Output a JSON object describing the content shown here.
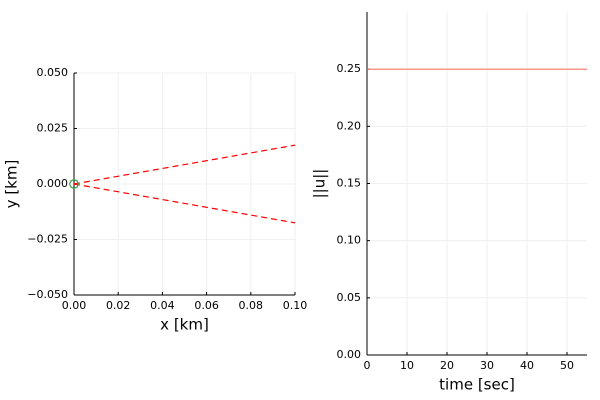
{
  "chart_data": [
    {
      "type": "line",
      "xlabel": "x [km]",
      "ylabel": "y [km]",
      "xlim": [
        0,
        0.1
      ],
      "ylim": [
        -0.05,
        0.05
      ],
      "xticks": [
        {
          "value": 0,
          "label": "0.00"
        },
        {
          "value": 0.02,
          "label": "0.02"
        },
        {
          "value": 0.04,
          "label": "0.04"
        },
        {
          "value": 0.06,
          "label": "0.06"
        },
        {
          "value": 0.08,
          "label": "0.08"
        },
        {
          "value": 0.1,
          "label": "0.10"
        }
      ],
      "yticks": [
        {
          "value": -0.05,
          "label": "−0.050"
        },
        {
          "value": -0.025,
          "label": "−0.025"
        },
        {
          "value": 0,
          "label": "0.000"
        },
        {
          "value": 0.025,
          "label": "0.025"
        },
        {
          "value": 0.05,
          "label": "0.050"
        }
      ],
      "grid": true,
      "series": [
        {
          "color": "#ff0000",
          "dash": true,
          "x": [
            0,
            0.1
          ],
          "values": [
            0,
            0.0175
          ]
        },
        {
          "color": "#ff0000",
          "dash": true,
          "x": [
            0,
            0.1
          ],
          "values": [
            0,
            -0.0175
          ]
        },
        {
          "color": "#3da44d",
          "dash": false,
          "x": [
            0.002,
            0.0014,
            0,
            -0.0014,
            -0.002,
            -0.0014,
            0,
            0.0014,
            0.002
          ],
          "values": [
            0,
            0.0014,
            0.002,
            0.0014,
            0,
            -0.0014,
            -0.002,
            -0.0014,
            0
          ]
        }
      ]
    },
    {
      "type": "line",
      "xlabel": "time [sec]",
      "ylabel": "||u||",
      "xlim": [
        0,
        55
      ],
      "ylim": [
        0,
        0.3
      ],
      "xticks": [
        0,
        10,
        20,
        30,
        40,
        50
      ],
      "yticks": [
        {
          "value": 0,
          "label": "0.00"
        },
        {
          "value": 0.05,
          "label": "0.05"
        },
        {
          "value": 0.1,
          "label": "0.10"
        },
        {
          "value": 0.15,
          "label": "0.15"
        },
        {
          "value": 0.2,
          "label": "0.20"
        },
        {
          "value": 0.25,
          "label": "0.25"
        }
      ],
      "grid": true,
      "series": [
        {
          "color": "#f8766d",
          "dash": false,
          "x": [
            0,
            55
          ],
          "values": [
            0.25,
            0.25
          ]
        }
      ]
    }
  ]
}
